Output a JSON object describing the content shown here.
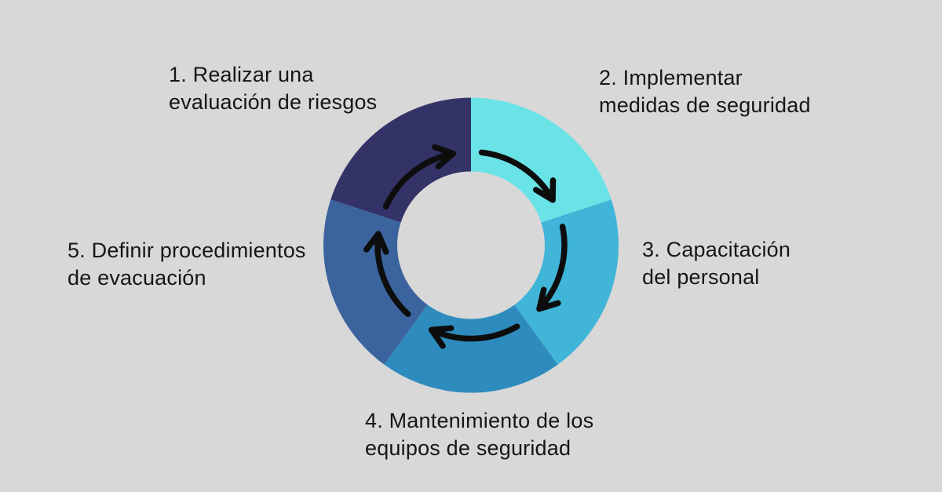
{
  "background_color": "#d8d8d8",
  "text_color": "#161616",
  "arrow_color": "#0d0d0d",
  "diagram": {
    "type": "cycle",
    "direction": "clockwise",
    "segment_count": 5,
    "steps": [
      {
        "number": "1",
        "line1": "1. Realizar una",
        "line2": "evaluación de riesgos",
        "color": "#333367",
        "arc_start": 288,
        "arc_end": 360
      },
      {
        "number": "2",
        "line1": "2. Implementar",
        "line2": "medidas de seguridad",
        "color": "#69e3e6",
        "arc_start": 0,
        "arc_end": 72
      },
      {
        "number": "3",
        "line1": "3. Capacitación",
        "line2": "del personal",
        "color": "#40b5d8",
        "arc_start": 72,
        "arc_end": 144
      },
      {
        "number": "4",
        "line1": "4. Mantenimiento de los",
        "line2": "equipos de seguridad",
        "color": "#2e8bbd",
        "arc_start": 144,
        "arc_end": 216
      },
      {
        "number": "5",
        "line1": "5. Definir procedimientos",
        "line2": "de evacuación",
        "color": "#3b649e",
        "arc_start": 216,
        "arc_end": 288
      }
    ]
  }
}
